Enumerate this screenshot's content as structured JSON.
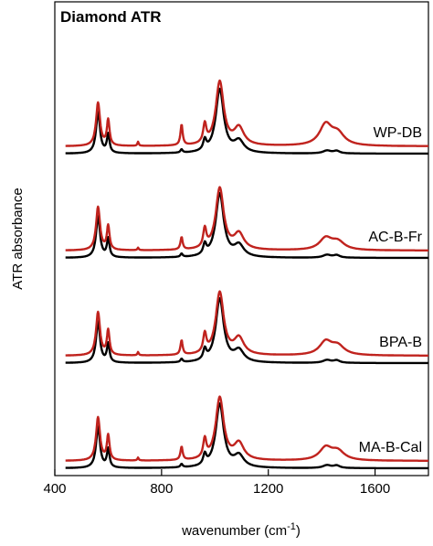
{
  "chart_data": {
    "type": "line",
    "title": "Diamond ATR",
    "xlabel_main": "wavenumber (cm",
    "xlabel_sup": "-1",
    "xlabel_end": ")",
    "ylabel": "ATR absorbance",
    "xlim": [
      400,
      1800
    ],
    "x_ticks": [
      400,
      800,
      1200,
      1600
    ],
    "y_ticks_visible": false,
    "grid": false,
    "colors": {
      "sample": "#c0231e",
      "reference": "#000000"
    },
    "series": [
      {
        "name": "WP-DB",
        "peaks": {
          "black": [
            [
              562,
              1.0
            ],
            [
              600,
              0.45
            ],
            [
              875,
              0.08
            ],
            [
              962,
              0.25
            ],
            [
              1018,
              1.55
            ],
            [
              1090,
              0.28
            ],
            [
              1420,
              0.07
            ],
            [
              1456,
              0.06
            ]
          ],
          "red": [
            [
              562,
              1.05
            ],
            [
              600,
              0.62
            ],
            [
              712,
              0.1
            ],
            [
              875,
              0.5
            ],
            [
              962,
              0.45
            ],
            [
              1018,
              1.55
            ],
            [
              1090,
              0.42
            ],
            [
              1415,
              0.5
            ],
            [
              1460,
              0.28
            ]
          ]
        }
      },
      {
        "name": "AC-B-Fr",
        "peaks": {
          "black": [
            [
              562,
              1.0
            ],
            [
              600,
              0.45
            ],
            [
              875,
              0.08
            ],
            [
              962,
              0.25
            ],
            [
              1018,
              1.55
            ],
            [
              1090,
              0.28
            ],
            [
              1420,
              0.07
            ],
            [
              1456,
              0.06
            ]
          ],
          "red": [
            [
              562,
              1.05
            ],
            [
              600,
              0.58
            ],
            [
              712,
              0.06
            ],
            [
              875,
              0.3
            ],
            [
              962,
              0.45
            ],
            [
              1018,
              1.5
            ],
            [
              1090,
              0.38
            ],
            [
              1415,
              0.28
            ],
            [
              1460,
              0.2
            ]
          ]
        }
      },
      {
        "name": "BPA-B",
        "peaks": {
          "black": [
            [
              562,
              1.0
            ],
            [
              600,
              0.45
            ],
            [
              875,
              0.08
            ],
            [
              962,
              0.25
            ],
            [
              1018,
              1.55
            ],
            [
              1090,
              0.28
            ],
            [
              1420,
              0.07
            ],
            [
              1456,
              0.06
            ]
          ],
          "red": [
            [
              562,
              1.05
            ],
            [
              600,
              0.6
            ],
            [
              712,
              0.08
            ],
            [
              875,
              0.35
            ],
            [
              962,
              0.45
            ],
            [
              1018,
              1.52
            ],
            [
              1090,
              0.4
            ],
            [
              1415,
              0.32
            ],
            [
              1460,
              0.22
            ]
          ]
        }
      },
      {
        "name": "MA-B-Cal",
        "peaks": {
          "black": [
            [
              562,
              1.0
            ],
            [
              600,
              0.45
            ],
            [
              875,
              0.08
            ],
            [
              962,
              0.25
            ],
            [
              1018,
              1.55
            ],
            [
              1090,
              0.28
            ],
            [
              1420,
              0.07
            ],
            [
              1456,
              0.06
            ]
          ],
          "red": [
            [
              562,
              1.05
            ],
            [
              600,
              0.6
            ],
            [
              712,
              0.07
            ],
            [
              875,
              0.32
            ],
            [
              962,
              0.45
            ],
            [
              1018,
              1.52
            ],
            [
              1090,
              0.4
            ],
            [
              1415,
              0.3
            ],
            [
              1460,
              0.22
            ]
          ]
        }
      }
    ]
  }
}
